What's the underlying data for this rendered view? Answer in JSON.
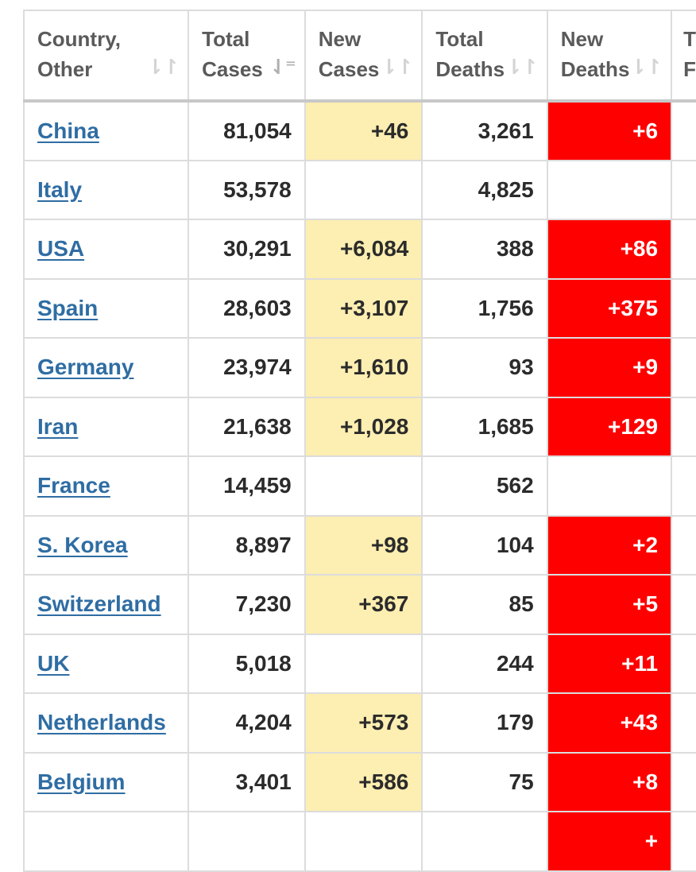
{
  "table": {
    "headers": [
      {
        "line1": "Country,",
        "line2": "Other",
        "sort": "⇂↾"
      },
      {
        "line1": "Total",
        "line2": "Cases",
        "sort": "⇃⁼"
      },
      {
        "line1": "New",
        "line2": "Cases",
        "sort": "⇂↾"
      },
      {
        "line1": "Total",
        "line2": "Deaths",
        "sort": "⇂↾"
      },
      {
        "line1": "New",
        "line2": "Deaths",
        "sort": "⇂↾"
      },
      {
        "line1": "T",
        "line2": "F",
        "sort": ""
      }
    ],
    "rows": [
      {
        "country": "China",
        "total_cases": "81,054",
        "new_cases": "+46",
        "total_deaths": "3,261",
        "new_deaths": "+6"
      },
      {
        "country": "Italy",
        "total_cases": "53,578",
        "new_cases": "",
        "total_deaths": "4,825",
        "new_deaths": ""
      },
      {
        "country": "USA",
        "total_cases": "30,291",
        "new_cases": "+6,084",
        "total_deaths": "388",
        "new_deaths": "+86"
      },
      {
        "country": "Spain",
        "total_cases": "28,603",
        "new_cases": "+3,107",
        "total_deaths": "1,756",
        "new_deaths": "+375"
      },
      {
        "country": "Germany",
        "total_cases": "23,974",
        "new_cases": "+1,610",
        "total_deaths": "93",
        "new_deaths": "+9"
      },
      {
        "country": "Iran",
        "total_cases": "21,638",
        "new_cases": "+1,028",
        "total_deaths": "1,685",
        "new_deaths": "+129"
      },
      {
        "country": "France",
        "total_cases": "14,459",
        "new_cases": "",
        "total_deaths": "562",
        "new_deaths": ""
      },
      {
        "country": "S. Korea",
        "total_cases": "8,897",
        "new_cases": "+98",
        "total_deaths": "104",
        "new_deaths": "+2"
      },
      {
        "country": "Switzerland",
        "total_cases": "7,230",
        "new_cases": "+367",
        "total_deaths": "85",
        "new_deaths": "+5"
      },
      {
        "country": "UK",
        "total_cases": "5,018",
        "new_cases": "",
        "total_deaths": "244",
        "new_deaths": "+11"
      },
      {
        "country": "Netherlands",
        "total_cases": "4,204",
        "new_cases": "+573",
        "total_deaths": "179",
        "new_deaths": "+43"
      },
      {
        "country": "Belgium",
        "total_cases": "3,401",
        "new_cases": "+586",
        "total_deaths": "75",
        "new_deaths": "+8"
      },
      {
        "country": "",
        "total_cases": "",
        "new_cases": "",
        "total_deaths": "",
        "new_deaths": "+"
      }
    ]
  },
  "colors": {
    "new_cases_highlight": "#fdeeb1",
    "new_deaths_highlight": "#ff0000",
    "link": "#2f6da3"
  }
}
